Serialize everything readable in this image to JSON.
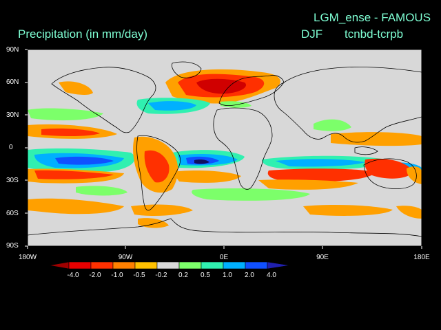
{
  "title_line1": "LGM_ense - FAMOUS",
  "season": "DJF",
  "difference": "tcnbd-tcrpb",
  "variable": "Precipitation (in mm/day)",
  "y_axis_labels": [
    "90N",
    "60N",
    "30N",
    "0",
    "30S",
    "60S",
    "90S"
  ],
  "x_axis_labels": [
    "180W",
    "90W",
    "0E",
    "90E",
    "180E"
  ],
  "colorbar": {
    "tick_labels": [
      "-4.0",
      "-2.0",
      "-1.0",
      "-0.5",
      "-0.2",
      "0.2",
      "0.5",
      "1.0",
      "2.0",
      "4.0"
    ],
    "colors": [
      "#a00000",
      "#e80000",
      "#ff4a00",
      "#ff8c00",
      "#ffc000",
      "#d8d8d8",
      "#7cff6a",
      "#30f0b0",
      "#00b0ff",
      "#1050ff",
      "#2020b0"
    ]
  },
  "map": {
    "lon_range": [
      -180,
      180
    ],
    "lat_range": [
      -90,
      90
    ],
    "background_color": "#d8d8d8"
  }
}
